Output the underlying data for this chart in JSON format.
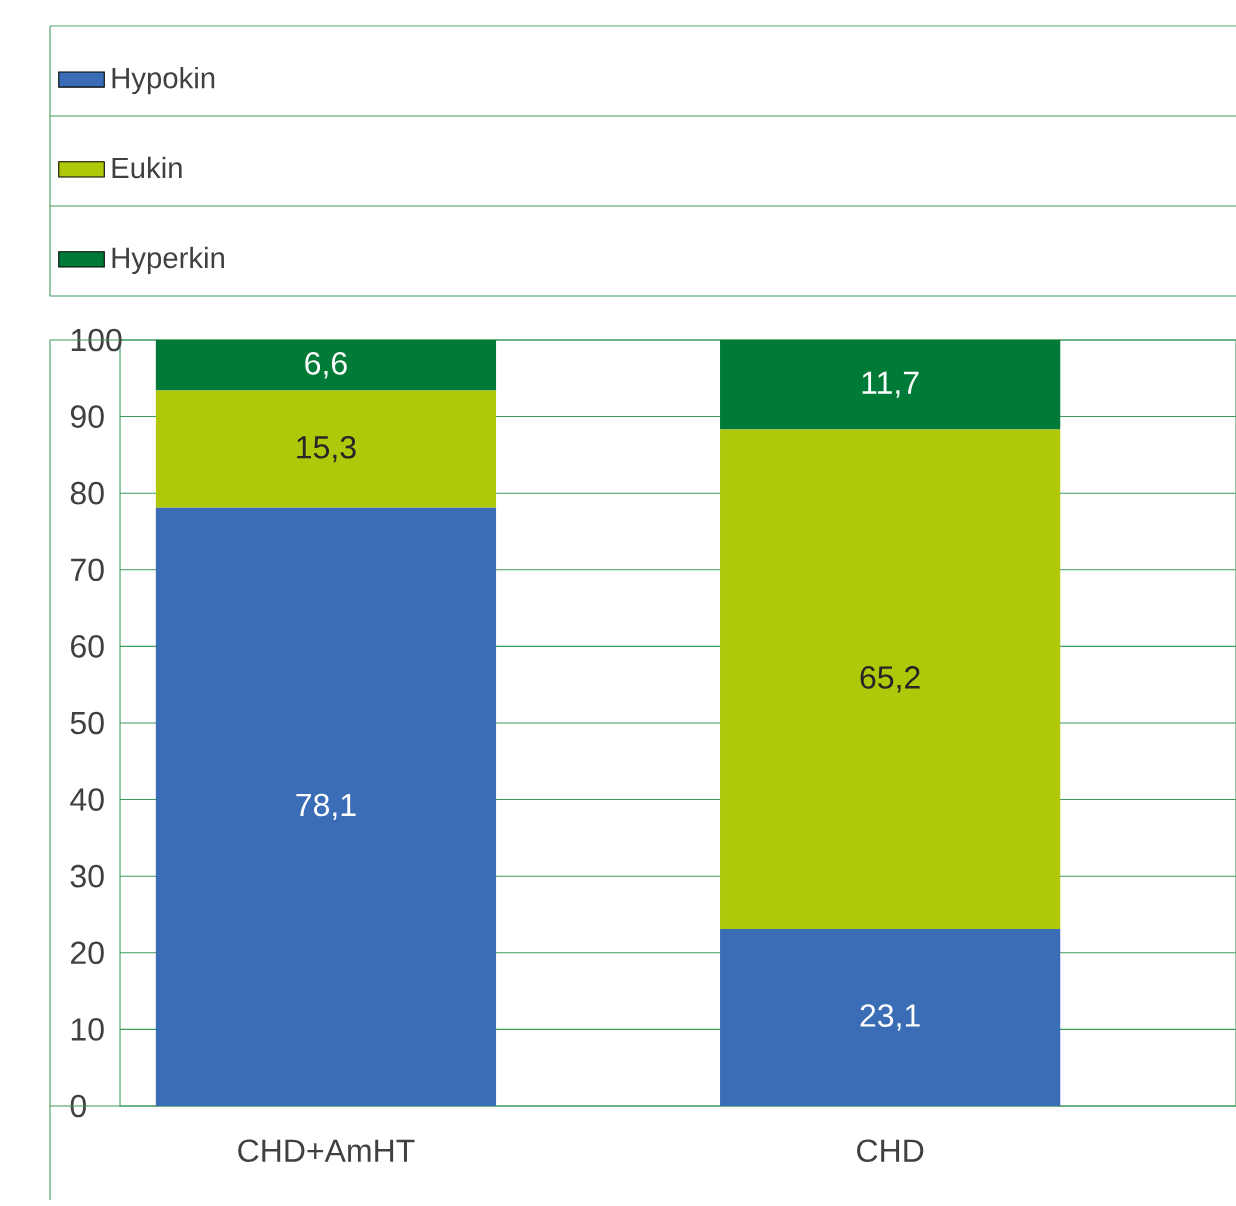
{
  "chart_data": {
    "type": "bar",
    "stacked": true,
    "categories": [
      "CHD+AmHT",
      "CHD"
    ],
    "series": [
      {
        "name": "Hypokin",
        "color": "#3a6db5",
        "values": [
          78.1,
          23.1
        ],
        "value_labels": [
          "78,1",
          "23,1"
        ]
      },
      {
        "name": "Eukin",
        "color": "#afc80a",
        "values": [
          15.3,
          65.2
        ],
        "value_labels": [
          "15,3",
          "65,2"
        ]
      },
      {
        "name": "Hyperkin",
        "color": "#007a37",
        "values": [
          6.6,
          11.7
        ],
        "value_labels": [
          "6,6",
          "11,7"
        ]
      }
    ],
    "ylim": [
      0,
      100
    ],
    "yticks": [
      0,
      10,
      20,
      30,
      40,
      50,
      60,
      70,
      80,
      90,
      100
    ],
    "grid": "y",
    "legend": "top"
  }
}
